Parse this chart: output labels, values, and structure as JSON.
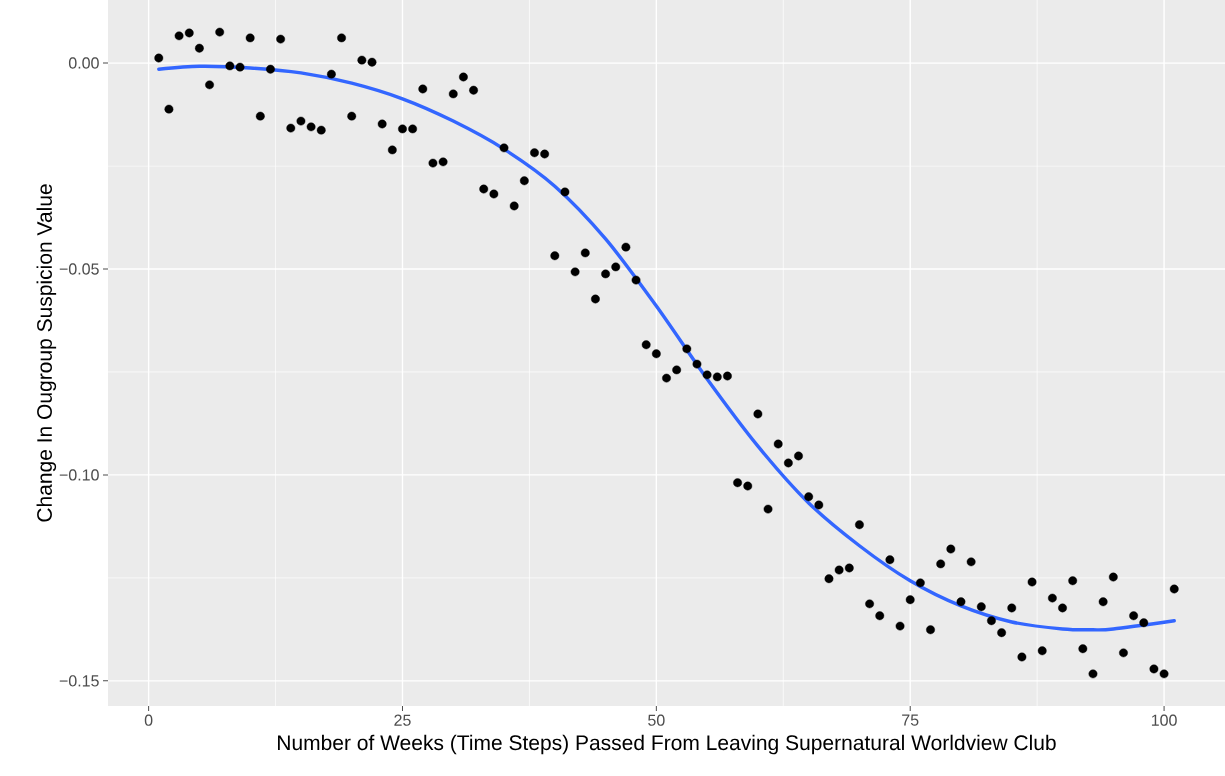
{
  "chart_data": {
    "type": "scatter",
    "xlabel": "Number of Weeks (Time Steps) Passed From Leaving Supernatural Worldview Club",
    "ylabel": "Change In Ougroup Suspicion Value",
    "xlim": [
      -4,
      106
    ],
    "ylim": [
      -0.1561,
      0.0153
    ],
    "xticks": [
      0,
      25,
      50,
      75,
      100
    ],
    "yticks": [
      {
        "value": 0,
        "label": "0.00"
      },
      {
        "value": -0.05,
        "label": "−0.05"
      },
      {
        "value": -0.1,
        "label": "−0.10"
      },
      {
        "value": -0.15,
        "label": "−0.15"
      }
    ],
    "grid": true,
    "series": [
      {
        "type": "scatter",
        "color": "#000000",
        "marker": "circle",
        "x": [
          1,
          2,
          3,
          4,
          5,
          6,
          7,
          8,
          9,
          10,
          11,
          12,
          13,
          14,
          15,
          16,
          17,
          18,
          19,
          20,
          21,
          22,
          23,
          24,
          25,
          26,
          27,
          28,
          29,
          30,
          31,
          32,
          33,
          34,
          35,
          36,
          37,
          38,
          39,
          40,
          41,
          42,
          43,
          44,
          45,
          46,
          47,
          48,
          49,
          50,
          51,
          52,
          53,
          54,
          55,
          56,
          57,
          58,
          59,
          60,
          61,
          62,
          63,
          64,
          65,
          66,
          67,
          68,
          69,
          70,
          71,
          72,
          73,
          74,
          75,
          76,
          77,
          78,
          79,
          80,
          81,
          82,
          83,
          84,
          85,
          86,
          87,
          88,
          89,
          90,
          91,
          92,
          93,
          94,
          95,
          96,
          97,
          98,
          99,
          100,
          101
        ],
        "values": [
          0.0012,
          -0.0112,
          0.0066,
          0.0073,
          0.0036,
          -0.0053,
          0.0075,
          -0.0007,
          -0.001,
          0.0061,
          -0.0129,
          -0.0015,
          0.0058,
          -0.0158,
          -0.0141,
          -0.0155,
          -0.0163,
          -0.0027,
          0.0061,
          -0.0129,
          0.0007,
          0.0002,
          -0.0148,
          -0.0211,
          -0.016,
          -0.016,
          -0.0063,
          -0.0243,
          -0.024,
          -0.0075,
          -0.0034,
          -0.0066,
          -0.0306,
          -0.0318,
          -0.0206,
          -0.0347,
          -0.0286,
          -0.0218,
          -0.0221,
          -0.0468,
          -0.0313,
          -0.0507,
          -0.0461,
          -0.0573,
          -0.0512,
          -0.0495,
          -0.0447,
          -0.0527,
          -0.0684,
          -0.0706,
          -0.0765,
          -0.0745,
          -0.0694,
          -0.0731,
          -0.0757,
          -0.0762,
          -0.076,
          -0.1019,
          -0.1027,
          -0.0852,
          -0.1083,
          -0.0925,
          -0.0971,
          -0.0954,
          -0.1053,
          -0.1073,
          -0.1252,
          -0.1231,
          -0.1226,
          -0.1121,
          -0.1313,
          -0.1342,
          -0.1206,
          -0.1367,
          -0.1303,
          -0.1262,
          -0.1376,
          -0.1216,
          -0.118,
          -0.1308,
          -0.1211,
          -0.132,
          -0.1354,
          -0.1383,
          -0.1323,
          -0.1442,
          -0.126,
          -0.1427,
          -0.1299,
          -0.1323,
          -0.1257,
          -0.1422,
          -0.1483,
          -0.1308,
          -0.1248,
          -0.1432,
          -0.1342,
          -0.1359,
          -0.1471,
          -0.1483,
          -0.1277
        ]
      },
      {
        "type": "line",
        "color": "#3366ff",
        "marker": "none",
        "line_style": "solid",
        "x": [
          1,
          5,
          10,
          15,
          20,
          25,
          30,
          35,
          40,
          45,
          50,
          55,
          60,
          65,
          70,
          75,
          80,
          85,
          90,
          93,
          95,
          101
        ],
        "values": [
          -0.0015,
          -0.0008,
          -0.0012,
          -0.0024,
          -0.0049,
          -0.0087,
          -0.0141,
          -0.0209,
          -0.0299,
          -0.0427,
          -0.059,
          -0.0767,
          -0.093,
          -0.1068,
          -0.1172,
          -0.1257,
          -0.1318,
          -0.1357,
          -0.1374,
          -0.1376,
          -0.1374,
          -0.1354
        ]
      }
    ]
  }
}
